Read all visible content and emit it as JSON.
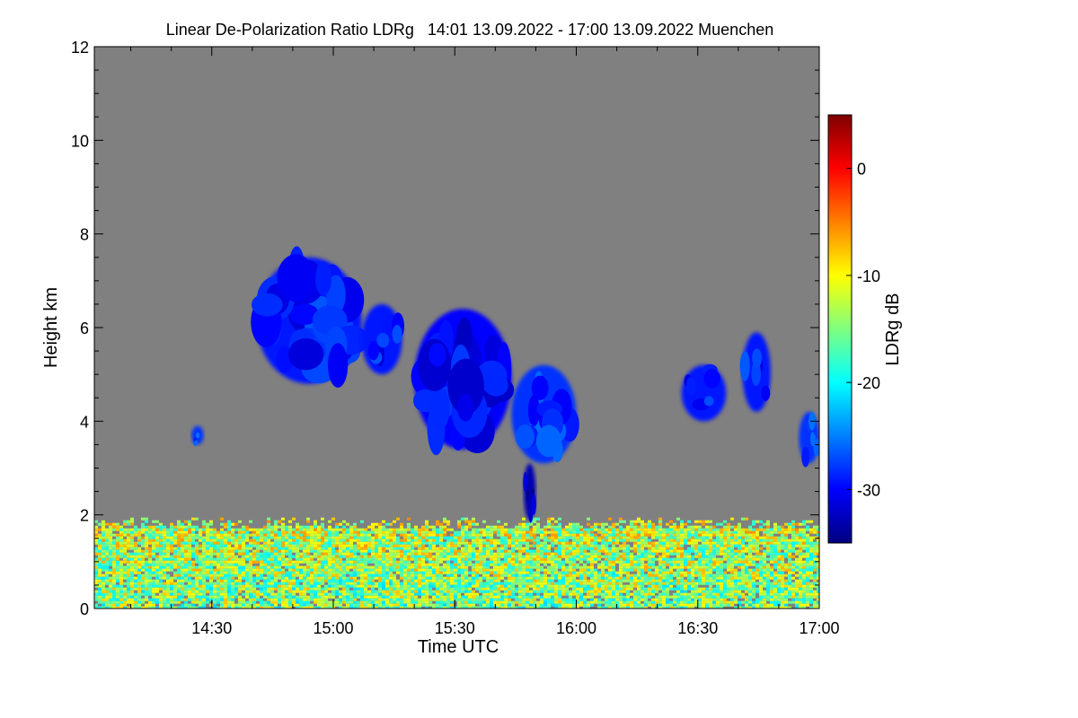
{
  "chart_data": {
    "type": "heatmap",
    "title": "Linear De-Polarization Ratio LDRg   14:01 13.09.2022 - 17:00 13.09.2022 Muenchen",
    "xlabel": "Time UTC",
    "ylabel": "Height km",
    "x_range": [
      "14:01",
      "17:00"
    ],
    "x_ticks": [
      "14:30",
      "15:00",
      "15:30",
      "16:00",
      "16:30",
      "17:00"
    ],
    "y_range": [
      0,
      12
    ],
    "y_ticks": [
      "0",
      "2",
      "4",
      "6",
      "8",
      "10",
      "12"
    ],
    "colorbar": {
      "label": "LDRg dB",
      "range": [
        -35,
        5
      ],
      "ticks": [
        "0",
        "-10",
        "-20",
        "-30"
      ],
      "colormap": [
        "#00007f",
        "#0000ff",
        "#007fff",
        "#00ffff",
        "#7fff7f",
        "#ffff00",
        "#ff7f00",
        "#ff0000",
        "#7f0000"
      ]
    },
    "background_color": "#808080",
    "features": [
      {
        "name": "boundary layer",
        "t_start": "14:01",
        "t_end": "17:00",
        "h_bottom": 0.0,
        "h_top": 2.0,
        "ldr": -12
      },
      {
        "name": "cloud",
        "t_start": "14:41",
        "t_end": "15:07",
        "h_bottom": 4.8,
        "h_top": 7.5,
        "ldr": -29
      },
      {
        "name": "cloud",
        "t_start": "15:07",
        "t_end": "15:17",
        "h_bottom": 5.0,
        "h_top": 6.5,
        "ldr": -29
      },
      {
        "name": "cloud",
        "t_start": "15:20",
        "t_end": "15:44",
        "h_bottom": 3.4,
        "h_top": 6.4,
        "ldr": -30
      },
      {
        "name": "cloud",
        "t_start": "15:44",
        "t_end": "16:00",
        "h_bottom": 3.1,
        "h_top": 5.2,
        "ldr": -28
      },
      {
        "name": "fall streak",
        "t_start": "15:47",
        "t_end": "15:50",
        "h_bottom": 1.9,
        "h_top": 3.1,
        "ldr": -33
      },
      {
        "name": "cloud",
        "t_start": "16:26",
        "t_end": "16:37",
        "h_bottom": 4.0,
        "h_top": 5.2,
        "ldr": -29
      },
      {
        "name": "cloud",
        "t_start": "16:41",
        "t_end": "16:48",
        "h_bottom": 4.2,
        "h_top": 5.9,
        "ldr": -29
      },
      {
        "name": "cloud",
        "t_start": "16:55",
        "t_end": "17:00",
        "h_bottom": 3.1,
        "h_top": 4.2,
        "ldr": -28
      },
      {
        "name": "cloud",
        "t_start": "14:25",
        "t_end": "14:28",
        "h_bottom": 3.5,
        "h_top": 3.9,
        "ldr": -28
      }
    ]
  }
}
